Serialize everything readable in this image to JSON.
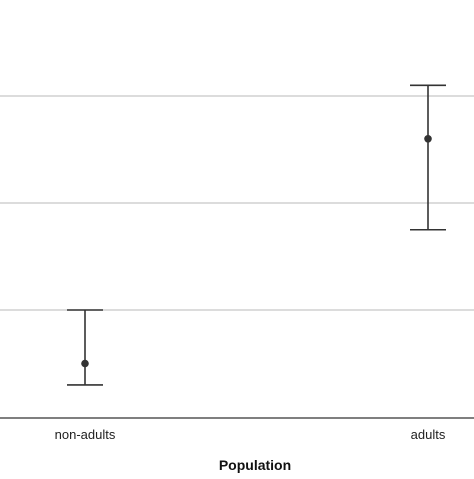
{
  "chart_data": {
    "type": "errorbar",
    "title": "",
    "xlabel": "Population",
    "ylabel": "",
    "categories": [
      "non-adults",
      "adults"
    ],
    "points": [
      {
        "category": "non-adults",
        "mean": 0.5,
        "lower": 0.3,
        "upper": 1.0
      },
      {
        "category": "adults",
        "mean": 2.6,
        "lower": 1.75,
        "upper": 3.1
      }
    ],
    "ylim": [
      -0.5,
      3.5
    ],
    "gridlines_y": [
      0,
      1,
      2,
      3
    ],
    "grid": true,
    "legend": "none",
    "colors": {
      "grid": "#c8c8c8",
      "baseline": "#555555",
      "marker": "#333333",
      "text": "#222222",
      "background": "#ffffff"
    }
  }
}
